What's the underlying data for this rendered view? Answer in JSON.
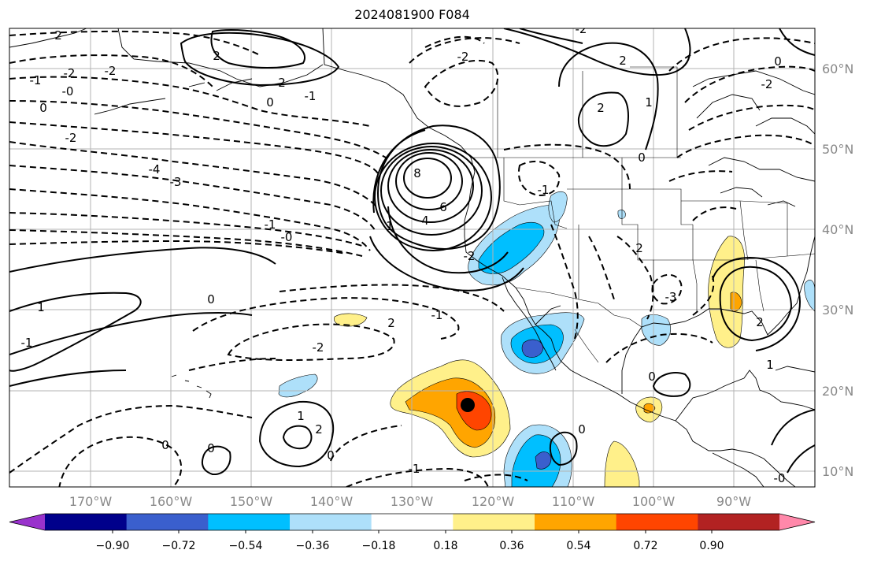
{
  "title": "2024081900 F084",
  "longitude_labels": [
    "170°W",
    "160°W",
    "150°W",
    "140°W",
    "130°W",
    "120°W",
    "110°W",
    "100°W",
    "90°W"
  ],
  "latitude_labels": [
    "60°N",
    "50°N",
    "40°N",
    "30°N",
    "20°N",
    "10°N"
  ],
  "colorbar": {
    "tick_labels": [
      "−0.90",
      "−0.72",
      "−0.54",
      "−0.36",
      "−0.18",
      "0.18",
      "0.36",
      "0.54",
      "0.72",
      "0.90"
    ],
    "colors": [
      "#9932cc",
      "#00008b",
      "#3a5fcd",
      "#00bfff",
      "#aee0fa",
      "#ffffff",
      "#fff08a",
      "#ffa500",
      "#ff4500",
      "#b22222",
      "#ff88aa"
    ]
  },
  "contour_labels": [
    {
      "text": "2"
    },
    {
      "text": "-1"
    },
    {
      "text": "-2"
    },
    {
      "text": "-2"
    },
    {
      "text": "0"
    },
    {
      "text": "-0"
    },
    {
      "text": "2"
    },
    {
      "text": "0"
    },
    {
      "text": "-1"
    },
    {
      "text": "-2"
    },
    {
      "text": "-4"
    },
    {
      "text": "-3"
    },
    {
      "text": "8"
    },
    {
      "text": "6"
    },
    {
      "text": "4"
    },
    {
      "text": "1"
    },
    {
      "text": "-1"
    },
    {
      "text": "-0"
    },
    {
      "text": "1"
    },
    {
      "text": "-1"
    },
    {
      "text": "0"
    },
    {
      "text": "2"
    },
    {
      "text": "-2"
    },
    {
      "text": "-1"
    },
    {
      "text": "-2"
    },
    {
      "text": "1"
    },
    {
      "text": "2"
    },
    {
      "text": "0"
    },
    {
      "text": "0"
    },
    {
      "text": "0"
    },
    {
      "text": "-1"
    },
    {
      "text": "0"
    },
    {
      "text": "2"
    },
    {
      "text": "-3"
    },
    {
      "text": "2"
    },
    {
      "text": "0"
    },
    {
      "text": "-2"
    },
    {
      "text": "2"
    },
    {
      "text": "0"
    },
    {
      "text": "-2"
    },
    {
      "text": "-1"
    },
    {
      "text": "2"
    },
    {
      "text": "1"
    },
    {
      "text": "-2"
    },
    {
      "text": "2"
    },
    {
      "text": "1"
    },
    {
      "text": "-0"
    },
    {
      "text": "0"
    }
  ]
}
